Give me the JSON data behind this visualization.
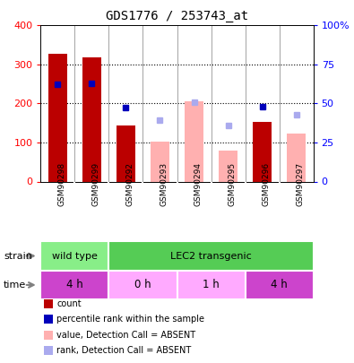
{
  "title": "GDS1776 / 253743_at",
  "samples": [
    "GSM90298",
    "GSM90299",
    "GSM90292",
    "GSM90293",
    "GSM90294",
    "GSM90295",
    "GSM90296",
    "GSM90297"
  ],
  "count_values": [
    327,
    319,
    143,
    null,
    null,
    null,
    152,
    null
  ],
  "count_absent_values": [
    null,
    null,
    null,
    102,
    205,
    80,
    null,
    122
  ],
  "rank_values": [
    250,
    252,
    190,
    null,
    null,
    null,
    191,
    null
  ],
  "rank_absent_values": [
    null,
    null,
    null,
    158,
    204,
    143,
    null,
    172
  ],
  "ylim": [
    0,
    400
  ],
  "yticks_left": [
    0,
    100,
    200,
    300,
    400
  ],
  "ytick_labels_left": [
    "0",
    "100",
    "200",
    "300",
    "400"
  ],
  "ytick_labels_right": [
    "0",
    "25",
    "50",
    "75",
    "100%"
  ],
  "bar_color_present": "#BB0000",
  "bar_color_absent": "#FFB0B0",
  "rank_color_present": "#0000BB",
  "rank_color_absent": "#AAAAEE",
  "xtick_bg": "#CCCCCC",
  "strain_wild_color": "#88EE88",
  "strain_lec2_color": "#55CC55",
  "time_4h_color": "#CC44CC",
  "time_0h_color": "#FFAAFF",
  "time_1h_color": "#FFAAFF",
  "strain_labels": [
    {
      "label": "wild type",
      "start": 0,
      "end": 2
    },
    {
      "label": "LEC2 transgenic",
      "start": 2,
      "end": 8
    }
  ],
  "time_labels": [
    {
      "label": "4 h",
      "start": 0,
      "end": 2,
      "strong": true
    },
    {
      "label": "0 h",
      "start": 2,
      "end": 4,
      "strong": false
    },
    {
      "label": "1 h",
      "start": 4,
      "end": 6,
      "strong": false
    },
    {
      "label": "4 h",
      "start": 6,
      "end": 8,
      "strong": true
    }
  ],
  "legend_items": [
    {
      "label": "count",
      "color": "#BB0000",
      "marker": "s"
    },
    {
      "label": "percentile rank within the sample",
      "color": "#0000BB",
      "marker": "s"
    },
    {
      "label": "value, Detection Call = ABSENT",
      "color": "#FFB0B0",
      "marker": "s"
    },
    {
      "label": "rank, Detection Call = ABSENT",
      "color": "#AAAAEE",
      "marker": "s"
    }
  ]
}
